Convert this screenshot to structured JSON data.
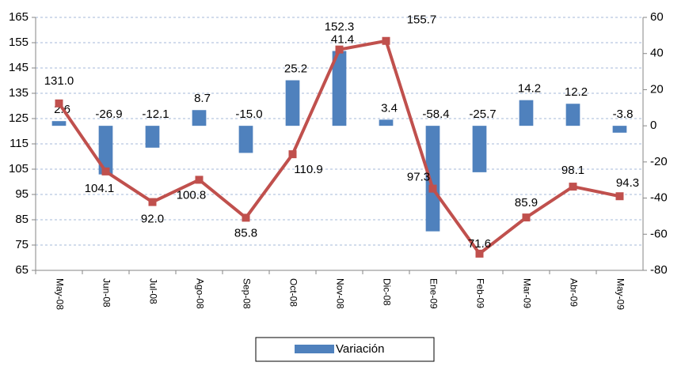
{
  "chart_data": {
    "type": "bar-line",
    "categories": [
      "May-08",
      "Jun-08",
      "Jul-08",
      "Ago-08",
      "Sep-08",
      "Oct-08",
      "Nov-08",
      "Dic-08",
      "Ene-09",
      "Feb-09",
      "Mar-09",
      "Abr-09",
      "May-09"
    ],
    "series": [
      {
        "name": "Variación",
        "type": "bar",
        "axis": "y2",
        "color": "#4f81bd",
        "values": [
          2.6,
          -26.9,
          -12.1,
          8.7,
          -15.0,
          25.2,
          41.4,
          3.4,
          -58.4,
          -25.7,
          14.2,
          12.2,
          -3.8
        ],
        "value_labels": [
          "2.6",
          "-26.9",
          "-12.1",
          "8.7",
          "-15.0",
          "25.2",
          "41.4",
          "3.4",
          "-58.4",
          "-25.7",
          "14.2",
          "12.2",
          "-3.8"
        ]
      },
      {
        "type": "line",
        "color": "#c0504d",
        "values": [
          131.0,
          104.1,
          92.0,
          100.8,
          85.8,
          110.9,
          152.3,
          155.7,
          97.3,
          71.6,
          85.9,
          98.1,
          94.3
        ],
        "value_labels": [
          "131.0",
          "104.1",
          "92.0",
          "100.8",
          "85.8",
          "110.9",
          "152.3",
          "155.7",
          "97.3",
          "71.6",
          "85.9",
          "98.1",
          "94.3"
        ]
      }
    ],
    "ylim": [
      65,
      165
    ],
    "yticks": [
      65,
      75,
      85,
      95,
      105,
      115,
      125,
      135,
      145,
      155,
      165
    ],
    "y2lim": [
      -80,
      60
    ],
    "y2ticks": [
      -80,
      -60,
      -40,
      -20,
      0,
      20,
      40,
      60
    ],
    "grid": true,
    "legend": "bottom"
  }
}
